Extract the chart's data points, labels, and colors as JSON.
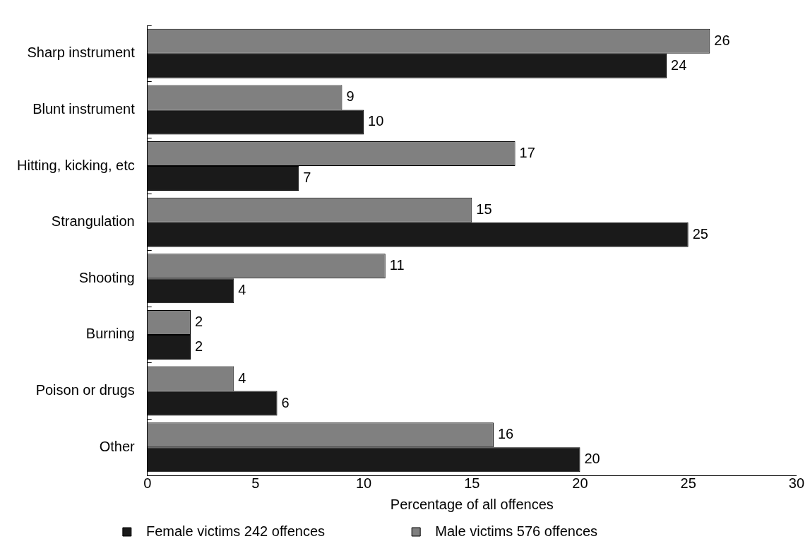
{
  "chart_data": {
    "type": "bar",
    "orientation": "horizontal",
    "xlabel": "Percentage of all offences",
    "categories": [
      "Sharp instrument",
      "Blunt instrument",
      "Hitting, kicking, etc",
      "Strangulation",
      "Shooting",
      "Burning",
      "Poison or drugs",
      "Other"
    ],
    "series": [
      {
        "name": "Male victims 576 offences",
        "color": "#808080",
        "values": [
          26,
          9,
          17,
          15,
          11,
          2,
          4,
          16
        ]
      },
      {
        "name": "Female victims 242 offences",
        "color": "#1a1a1a",
        "values": [
          24,
          10,
          7,
          25,
          4,
          2,
          6,
          20
        ]
      }
    ],
    "xlim": [
      0,
      30
    ],
    "xticks": [
      0,
      5,
      10,
      15,
      20,
      25,
      30
    ],
    "grid": false,
    "legend": "bottom",
    "data_labels": true
  }
}
